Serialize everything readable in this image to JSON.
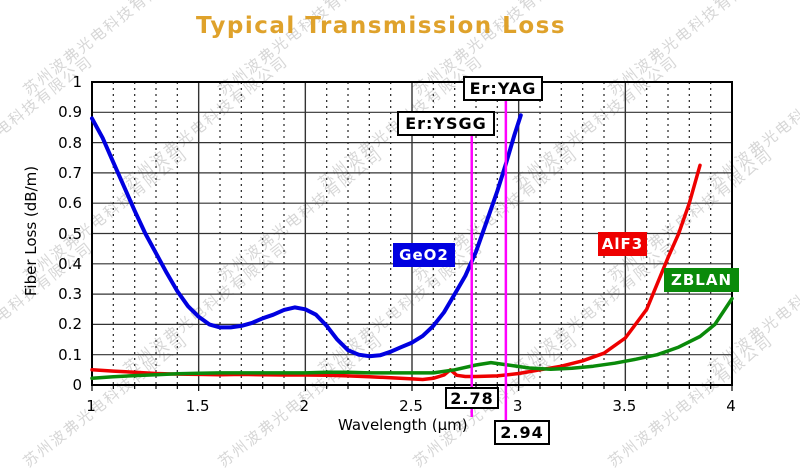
{
  "watermark": {
    "text": "苏州波弗光电科技有限公司"
  },
  "colors": {
    "title": "#DFA22B",
    "annotation_line": "#FF00FF",
    "grid": "#333333",
    "frame": "#000000"
  },
  "chart_data": {
    "type": "line",
    "title": "Typical Transmission Loss",
    "xlabel": "Wavelength (μm)",
    "ylabel": "Fiber Loss (dB/m)",
    "xlim": [
      1,
      4
    ],
    "ylim": [
      0,
      1
    ],
    "grid": {
      "horizontal_step": 0.1,
      "vertical_major_step": 0.5,
      "vertical_minor_step": 0.1,
      "minor_style": "dashed"
    },
    "x_ticks": [
      1,
      1.5,
      2,
      2.5,
      3,
      3.5,
      4
    ],
    "x_tick_labels": [
      "1",
      "1.5",
      "2",
      "2.5",
      "3",
      "3.5",
      "4"
    ],
    "y_ticks": [
      0,
      0.1,
      0.2,
      0.3,
      0.4,
      0.5,
      0.6,
      0.7,
      0.8,
      0.9,
      1
    ],
    "y_tick_labels": [
      "0",
      "0.1",
      "0.2",
      "0.3",
      "0.4",
      "0.5",
      "0.6",
      "0.7",
      "0.8",
      "0.9",
      "1"
    ],
    "series": [
      {
        "name": "GeO2",
        "color": "#0000E0",
        "points": [
          [
            1.0,
            0.88
          ],
          [
            1.05,
            0.815
          ],
          [
            1.1,
            0.735
          ],
          [
            1.15,
            0.655
          ],
          [
            1.2,
            0.575
          ],
          [
            1.25,
            0.5
          ],
          [
            1.3,
            0.435
          ],
          [
            1.35,
            0.37
          ],
          [
            1.4,
            0.31
          ],
          [
            1.45,
            0.26
          ],
          [
            1.5,
            0.225
          ],
          [
            1.55,
            0.2
          ],
          [
            1.6,
            0.19
          ],
          [
            1.65,
            0.19
          ],
          [
            1.7,
            0.195
          ],
          [
            1.75,
            0.205
          ],
          [
            1.8,
            0.22
          ],
          [
            1.85,
            0.232
          ],
          [
            1.9,
            0.248
          ],
          [
            1.95,
            0.256
          ],
          [
            2.0,
            0.25
          ],
          [
            2.05,
            0.232
          ],
          [
            2.1,
            0.195
          ],
          [
            2.15,
            0.15
          ],
          [
            2.2,
            0.115
          ],
          [
            2.25,
            0.1
          ],
          [
            2.3,
            0.095
          ],
          [
            2.35,
            0.098
          ],
          [
            2.4,
            0.11
          ],
          [
            2.45,
            0.125
          ],
          [
            2.5,
            0.14
          ],
          [
            2.55,
            0.162
          ],
          [
            2.6,
            0.195
          ],
          [
            2.65,
            0.24
          ],
          [
            2.7,
            0.3
          ],
          [
            2.75,
            0.36
          ],
          [
            2.8,
            0.44
          ],
          [
            2.85,
            0.54
          ],
          [
            2.9,
            0.64
          ],
          [
            2.94,
            0.73
          ],
          [
            2.98,
            0.825
          ],
          [
            3.01,
            0.89
          ]
        ]
      },
      {
        "name": "AlF3",
        "color": "#EE0000",
        "points": [
          [
            1.0,
            0.05
          ],
          [
            1.1,
            0.046
          ],
          [
            1.2,
            0.042
          ],
          [
            1.3,
            0.038
          ],
          [
            1.4,
            0.036
          ],
          [
            1.5,
            0.035
          ],
          [
            1.6,
            0.034
          ],
          [
            1.7,
            0.035
          ],
          [
            1.8,
            0.034
          ],
          [
            1.9,
            0.033
          ],
          [
            2.0,
            0.033
          ],
          [
            2.1,
            0.032
          ],
          [
            2.2,
            0.03
          ],
          [
            2.3,
            0.027
          ],
          [
            2.4,
            0.024
          ],
          [
            2.5,
            0.02
          ],
          [
            2.55,
            0.018
          ],
          [
            2.6,
            0.022
          ],
          [
            2.65,
            0.033
          ],
          [
            2.68,
            0.05
          ],
          [
            2.71,
            0.032
          ],
          [
            2.75,
            0.028
          ],
          [
            2.8,
            0.028
          ],
          [
            2.9,
            0.03
          ],
          [
            3.0,
            0.038
          ],
          [
            3.1,
            0.05
          ],
          [
            3.2,
            0.062
          ],
          [
            3.3,
            0.08
          ],
          [
            3.4,
            0.105
          ],
          [
            3.5,
            0.155
          ],
          [
            3.6,
            0.25
          ],
          [
            3.7,
            0.42
          ],
          [
            3.75,
            0.5
          ],
          [
            3.8,
            0.6
          ],
          [
            3.85,
            0.725
          ]
        ]
      },
      {
        "name": "ZBLAN",
        "color": "#0A8A0A",
        "points": [
          [
            1.0,
            0.022
          ],
          [
            1.1,
            0.027
          ],
          [
            1.2,
            0.031
          ],
          [
            1.3,
            0.034
          ],
          [
            1.4,
            0.037
          ],
          [
            1.5,
            0.039
          ],
          [
            1.6,
            0.04
          ],
          [
            1.7,
            0.04
          ],
          [
            1.8,
            0.04
          ],
          [
            1.9,
            0.04
          ],
          [
            2.0,
            0.04
          ],
          [
            2.1,
            0.042
          ],
          [
            2.2,
            0.042
          ],
          [
            2.3,
            0.04
          ],
          [
            2.4,
            0.04
          ],
          [
            2.5,
            0.04
          ],
          [
            2.6,
            0.04
          ],
          [
            2.7,
            0.05
          ],
          [
            2.8,
            0.066
          ],
          [
            2.87,
            0.074
          ],
          [
            2.95,
            0.066
          ],
          [
            3.05,
            0.056
          ],
          [
            3.15,
            0.052
          ],
          [
            3.25,
            0.055
          ],
          [
            3.35,
            0.062
          ],
          [
            3.45,
            0.072
          ],
          [
            3.55,
            0.085
          ],
          [
            3.65,
            0.1
          ],
          [
            3.75,
            0.125
          ],
          [
            3.85,
            0.16
          ],
          [
            3.92,
            0.2
          ],
          [
            4.0,
            0.285
          ]
        ]
      }
    ],
    "annotations": [
      {
        "label": "Er:YSGG",
        "x": 2.78,
        "value_label": "2.78",
        "color": "#FF00FF"
      },
      {
        "label": "Er:YAG",
        "x": 2.94,
        "value_label": "2.94",
        "color": "#FF00FF"
      }
    ]
  }
}
